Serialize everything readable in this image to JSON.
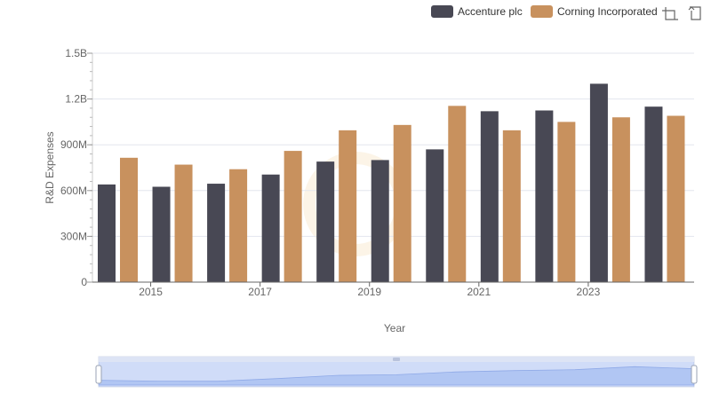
{
  "chart_data": {
    "type": "bar",
    "title": "",
    "xlabel": "Year",
    "ylabel": "R&D Expenses",
    "ylim": [
      0,
      1500000000
    ],
    "y_ticks": [
      {
        "value": 0,
        "label": "0"
      },
      {
        "value": 300000000,
        "label": "300M"
      },
      {
        "value": 600000000,
        "label": "600M"
      },
      {
        "value": 900000000,
        "label": "900M"
      },
      {
        "value": 1200000000,
        "label": "1.2B"
      },
      {
        "value": 1500000000,
        "label": "1.5B"
      }
    ],
    "categories": [
      "2014",
      "2015",
      "2016",
      "2017",
      "2018",
      "2019",
      "2020",
      "2021",
      "2022",
      "2023",
      "2024"
    ],
    "x_tick_labels": [
      "2015",
      "2017",
      "2019",
      "2021",
      "2023"
    ],
    "series": [
      {
        "name": "Accenture plc",
        "color": "#484854",
        "values": [
          640000000,
          625000000,
          645000000,
          705000000,
          790000000,
          800000000,
          870000000,
          1120000000,
          1125000000,
          1300000000,
          1150000000
        ]
      },
      {
        "name": "Corning Incorporated",
        "color": "#c8915e",
        "values": [
          815000000,
          770000000,
          740000000,
          860000000,
          995000000,
          1030000000,
          1155000000,
          995000000,
          1050000000,
          1080000000,
          1090000000
        ]
      }
    ],
    "grid": true,
    "legend_position": "top-right"
  },
  "toolbar": {
    "icons": [
      "zoom-select-icon",
      "reset-zoom-icon"
    ]
  },
  "data_zoom": {
    "range_start_percent": 0,
    "range_end_percent": 100
  }
}
